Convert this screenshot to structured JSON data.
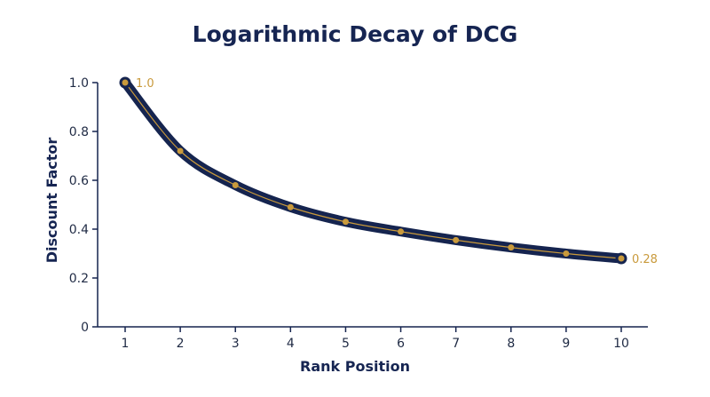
{
  "chart_data": {
    "type": "line",
    "title": "Logarithmic Decay of DCG",
    "xlabel": "Rank Position",
    "ylabel": "Discount Factor",
    "x": [
      1,
      2,
      3,
      4,
      5,
      6,
      7,
      8,
      9,
      10
    ],
    "series": [
      {
        "values": [
          1.0,
          0.72,
          0.58,
          0.49,
          0.43,
          0.39,
          0.355,
          0.325,
          0.3,
          0.28
        ]
      }
    ],
    "xticks": [
      "1",
      "2",
      "3",
      "4",
      "5",
      "6",
      "7",
      "8",
      "9",
      "10"
    ],
    "yticks": [
      "0",
      "0.2",
      "0.4",
      "0.6",
      "0.8",
      "1.0"
    ],
    "ytick_values": [
      0,
      0.2,
      0.4,
      0.6,
      0.8,
      1.0
    ],
    "xlim": [
      1,
      10
    ],
    "ylim": [
      0,
      1.0
    ],
    "grid": false,
    "annotations": [
      {
        "text": "1.0",
        "x": 1,
        "y": 1.0
      },
      {
        "text": "0.28",
        "x": 10,
        "y": 0.28
      }
    ],
    "colors": {
      "line": "#15244f",
      "inner_line": "#c99a3c",
      "marker": "#c99a3c",
      "axis": "#15244f",
      "title": "#162552",
      "annotation": "#c99a3c"
    }
  }
}
